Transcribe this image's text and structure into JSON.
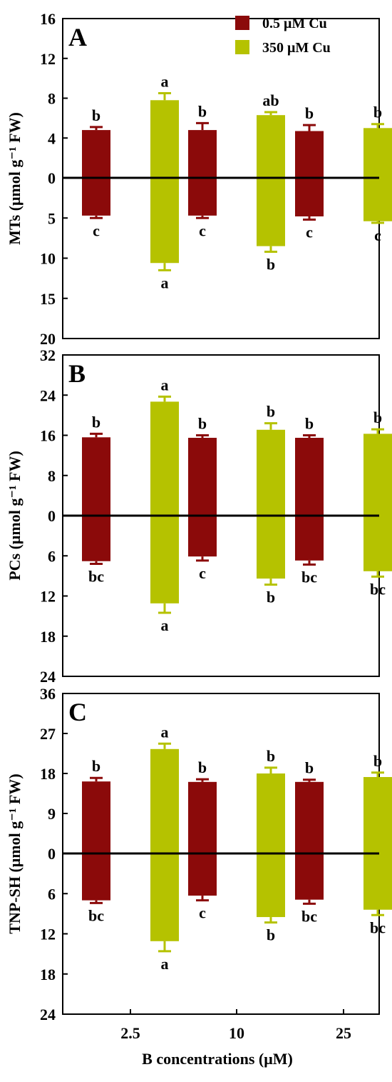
{
  "colors": {
    "low_cu": "#8b0a0a",
    "high_cu": "#b5c200",
    "axis": "#000000"
  },
  "legend": [
    {
      "label": "0.5 μM Cu",
      "color": "#8b0a0a"
    },
    {
      "label": "350 μM Cu",
      "color": "#b5c200"
    }
  ],
  "chart_data": [
    {
      "type": "bar",
      "panel": "A",
      "ylabel": "MTs (μmol g⁻¹ FW)",
      "categories": [
        "2.5",
        "10",
        "25"
      ],
      "upper_ticks": [
        "16",
        "12",
        "8",
        "4"
      ],
      "lower_ticks": [
        "0",
        "5",
        "10",
        "15",
        "20"
      ],
      "upper_max": 16,
      "lower_max": 20,
      "series": [
        {
          "name": "0.5 μM Cu",
          "upper_values": [
            4.8,
            4.8,
            4.7
          ],
          "upper_err": [
            0.3,
            0.7,
            0.6
          ],
          "upper_letters": [
            "b",
            "b",
            "b"
          ],
          "lower_values": [
            4.7,
            4.7,
            4.8
          ],
          "lower_err": [
            0.3,
            0.3,
            0.4
          ],
          "lower_letters": [
            "c",
            "c",
            "c"
          ]
        },
        {
          "name": "350 μM Cu",
          "upper_values": [
            7.8,
            6.3,
            5.0
          ],
          "upper_err": [
            0.7,
            0.3,
            0.4
          ],
          "upper_letters": [
            "a",
            "ab",
            "b"
          ],
          "lower_values": [
            10.6,
            8.5,
            5.4
          ],
          "lower_err": [
            0.9,
            0.7,
            0.2
          ],
          "lower_letters": [
            "a",
            "b",
            "c"
          ]
        }
      ]
    },
    {
      "type": "bar",
      "panel": "B",
      "ylabel": "PCs (μmol g⁻¹ FW)",
      "categories": [
        "2.5",
        "10",
        "25"
      ],
      "upper_ticks": [
        "32",
        "24",
        "16",
        "8"
      ],
      "lower_ticks": [
        "0",
        "6",
        "12",
        "18",
        "24"
      ],
      "upper_max": 32,
      "lower_max": 24,
      "series": [
        {
          "name": "0.5 μM Cu",
          "upper_values": [
            15.6,
            15.5,
            15.5
          ],
          "upper_err": [
            0.7,
            0.5,
            0.5
          ],
          "upper_letters": [
            "b",
            "b",
            "b"
          ],
          "lower_values": [
            6.8,
            6.1,
            6.7
          ],
          "lower_err": [
            0.4,
            0.6,
            0.6
          ],
          "lower_letters": [
            "bc",
            "c",
            "bc"
          ]
        },
        {
          "name": "350 μM Cu",
          "upper_values": [
            22.7,
            17.1,
            16.3
          ],
          "upper_err": [
            1.0,
            1.3,
            0.9
          ],
          "upper_letters": [
            "a",
            "b",
            "b"
          ],
          "lower_values": [
            13.1,
            9.4,
            8.3
          ],
          "lower_err": [
            1.4,
            0.9,
            0.8
          ],
          "lower_letters": [
            "a",
            "b",
            "bc"
          ]
        }
      ]
    },
    {
      "type": "bar",
      "panel": "C",
      "ylabel": "TNP-SH (μmol g⁻¹ FW)",
      "categories": [
        "2.5",
        "10",
        "25"
      ],
      "upper_ticks": [
        "36",
        "27",
        "18",
        "9"
      ],
      "lower_ticks": [
        "0",
        "6",
        "12",
        "18",
        "24"
      ],
      "upper_max": 36,
      "lower_max": 24,
      "series": [
        {
          "name": "0.5 μM Cu",
          "upper_values": [
            16.2,
            16.1,
            16.1
          ],
          "upper_err": [
            0.8,
            0.6,
            0.5
          ],
          "upper_letters": [
            "b",
            "b",
            "b"
          ],
          "lower_values": [
            7.0,
            6.3,
            6.9
          ],
          "lower_err": [
            0.4,
            0.7,
            0.6
          ],
          "lower_letters": [
            "bc",
            "c",
            "bc"
          ]
        },
        {
          "name": "350 μM Cu",
          "upper_values": [
            23.5,
            18.0,
            17.2
          ],
          "upper_err": [
            1.2,
            1.3,
            1.0
          ],
          "upper_letters": [
            "a",
            "b",
            "b"
          ],
          "lower_values": [
            13.1,
            9.5,
            8.4
          ],
          "lower_err": [
            1.5,
            0.8,
            0.8
          ],
          "lower_letters": [
            "a",
            "b",
            "bc"
          ]
        }
      ]
    }
  ],
  "xaxis": {
    "label": "B concentrations (μM)",
    "tick_labels": [
      "2.5",
      "10",
      "25"
    ]
  }
}
